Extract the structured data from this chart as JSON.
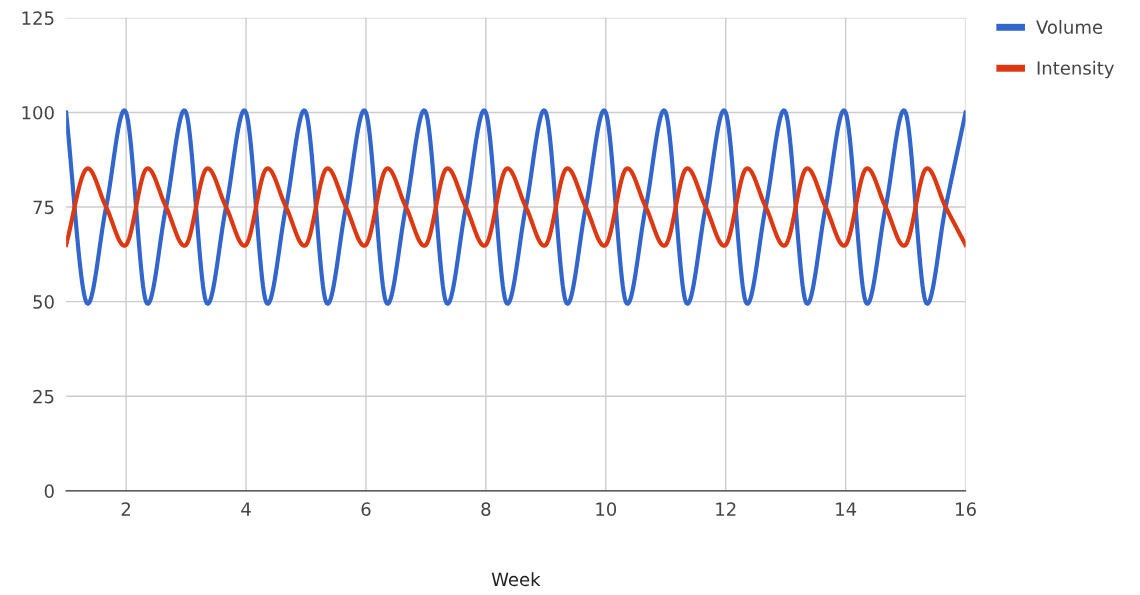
{
  "chart_data": {
    "type": "line",
    "xlabel": "Week",
    "x": [
      1,
      1.333,
      1.667,
      2,
      2.333,
      2.667,
      3,
      3.333,
      3.667,
      4,
      4.333,
      4.667,
      5,
      5.333,
      5.667,
      6,
      6.333,
      6.667,
      7,
      7.333,
      7.667,
      8,
      8.333,
      8.667,
      9,
      9.333,
      9.667,
      10,
      10.333,
      10.667,
      11,
      11.333,
      11.667,
      12,
      12.333,
      12.667,
      13,
      13.333,
      13.667,
      14,
      14.333,
      14.667,
      15,
      15.333,
      15.667,
      16
    ],
    "series": [
      {
        "name": "Volume",
        "color": "#3366cc",
        "values": [
          100,
          50,
          75,
          100,
          50,
          75,
          100,
          50,
          75,
          100,
          50,
          75,
          100,
          50,
          75,
          100,
          50,
          75,
          100,
          50,
          75,
          100,
          50,
          75,
          100,
          50,
          75,
          100,
          50,
          75,
          100,
          50,
          75,
          100,
          50,
          75,
          100,
          50,
          75,
          100,
          50,
          75,
          100,
          50,
          75,
          100
        ]
      },
      {
        "name": "Intensity",
        "color": "#dc3912",
        "values": [
          65,
          85,
          75,
          65,
          85,
          75,
          65,
          85,
          75,
          65,
          85,
          75,
          65,
          85,
          75,
          65,
          85,
          75,
          65,
          85,
          75,
          65,
          85,
          75,
          65,
          85,
          75,
          65,
          85,
          75,
          65,
          85,
          75,
          65,
          85,
          75,
          65,
          85,
          75,
          65,
          85,
          75,
          65,
          85,
          75,
          65
        ]
      }
    ],
    "xlim": [
      1,
      16
    ],
    "xticks": [
      2,
      4,
      6,
      8,
      10,
      12,
      14,
      16
    ],
    "ylim": [
      0,
      125
    ],
    "yticks": [
      0,
      25,
      50,
      75,
      100,
      125
    ],
    "grid": true,
    "legend": "top right",
    "marker": "none",
    "line_style": "solid"
  }
}
